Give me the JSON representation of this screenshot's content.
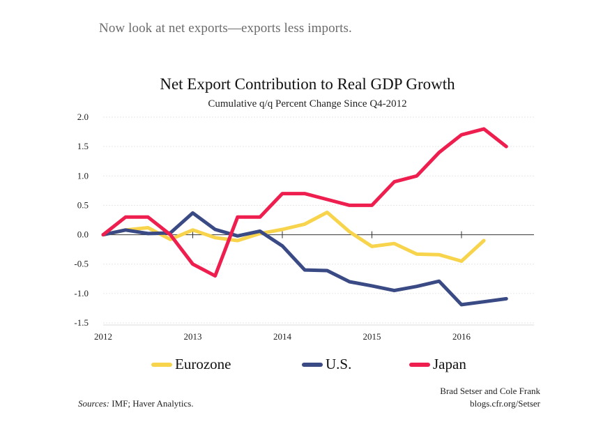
{
  "intro_text": "Now look at net exports—exports less imports.",
  "chart_data": {
    "type": "line",
    "title": "Net Export Contribution to Real GDP Growth",
    "subtitle": "Cumulative q/q Percent Change Since Q4-2012",
    "xlabel": "",
    "ylabel": "",
    "ylim": [
      -1.5,
      2.0
    ],
    "xlim": [
      2012,
      2017
    ],
    "y_ticks": [
      2.0,
      1.5,
      1.0,
      0.5,
      0.0,
      -0.5,
      -1.0,
      -1.5
    ],
    "y_tick_labels": [
      "2.0",
      "1.5",
      "1.0",
      "0.5",
      "0.0",
      "-0.5",
      "-1.0",
      "-1.5"
    ],
    "x_ticks": [
      2012,
      2013,
      2014,
      2015,
      2016
    ],
    "x_tick_labels": [
      "2012",
      "2013",
      "2014",
      "2015",
      "2016"
    ],
    "x": [
      2012.0,
      2012.25,
      2012.5,
      2012.75,
      2013.0,
      2013.25,
      2013.5,
      2013.75,
      2014.0,
      2014.25,
      2014.5,
      2014.75,
      2015.0,
      2015.25,
      2015.5,
      2015.75,
      2016.0,
      2016.25,
      2016.5
    ],
    "series": [
      {
        "name": "Eurozone",
        "color": "#f7d44c",
        "values": [
          0.0,
          0.08,
          0.12,
          -0.08,
          0.08,
          -0.05,
          -0.1,
          0.02,
          0.09,
          0.18,
          0.38,
          0.05,
          -0.2,
          -0.15,
          -0.33,
          -0.34,
          -0.45,
          -0.1,
          null
        ]
      },
      {
        "name": "U.S.",
        "color": "#3a4a84",
        "values": [
          0.0,
          0.08,
          0.02,
          0.03,
          0.37,
          0.09,
          -0.02,
          0.06,
          -0.19,
          -0.6,
          -0.61,
          -0.8,
          -0.87,
          -0.95,
          -0.88,
          -0.79,
          -1.19,
          -1.14,
          -1.09
        ]
      },
      {
        "name": "Japan",
        "color": "#ee1e4f",
        "values": [
          0.0,
          0.3,
          0.3,
          0.0,
          -0.5,
          -0.7,
          0.3,
          0.3,
          0.7,
          0.7,
          0.6,
          0.5,
          0.5,
          0.9,
          1.0,
          1.4,
          1.7,
          1.8,
          1.5
        ]
      }
    ]
  },
  "legend": [
    {
      "label": "Eurozone",
      "color": "#f7d44c"
    },
    {
      "label": "U.S.",
      "color": "#3a4a84"
    },
    {
      "label": "Japan",
      "color": "#ee1e4f"
    }
  ],
  "credit": {
    "line1": "Brad Setser and Cole Frank",
    "line2": "blogs.cfr.org/Setser"
  },
  "sources": {
    "prefix": "Sources:",
    "text": " IMF; Haver Analytics."
  }
}
